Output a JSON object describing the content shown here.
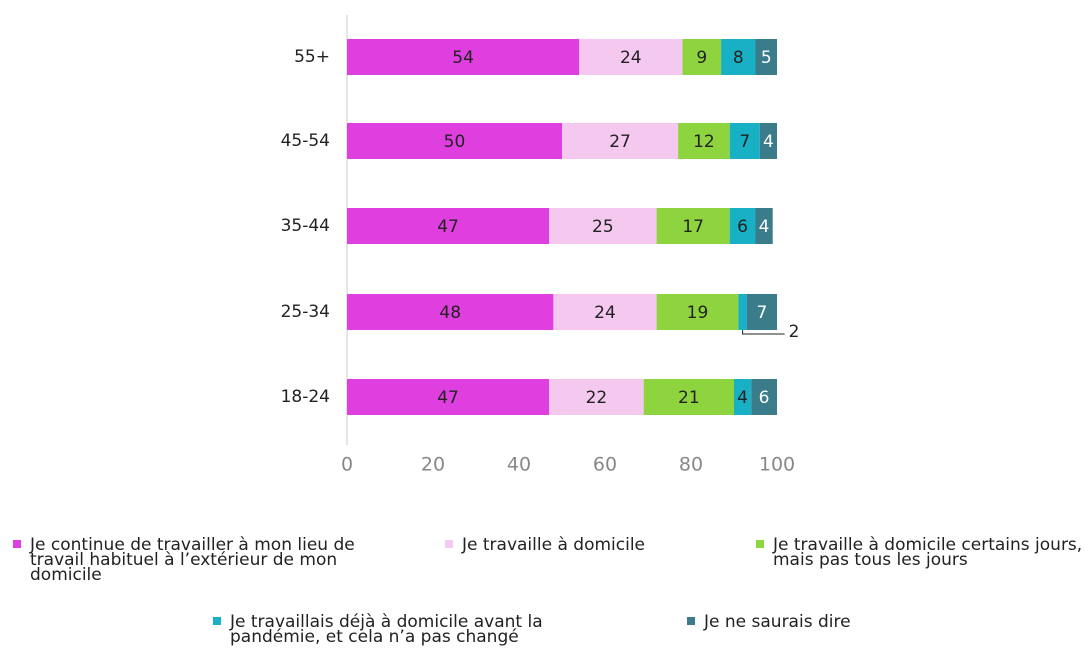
{
  "chart_data": {
    "type": "stacked-bar-horizontal",
    "categories": [
      "55+",
      "45-54",
      "35-44",
      "25-34",
      "18-24"
    ],
    "series": [
      {
        "name": "Je continue de travailler à mon lieu de travail habituel à l’extérieur de mon domicile",
        "color": "#e03fdf",
        "values": [
          54,
          50,
          47,
          48,
          47
        ]
      },
      {
        "name": "Je travaille à domicile",
        "color": "#f5c8f0",
        "values": [
          24,
          27,
          25,
          24,
          22
        ]
      },
      {
        "name": "Je travaille à domicile certains jours, mais pas tous les jours",
        "color": "#8ed43f",
        "values": [
          9,
          12,
          17,
          19,
          21
        ]
      },
      {
        "name": "Je travaillais déjà à domicile avant la pandémie, et cela n’a pas changé",
        "color": "#17b0c4",
        "values": [
          8,
          7,
          6,
          2,
          4
        ]
      },
      {
        "name": "Je ne saurais dire",
        "color": "#3b7c8a",
        "values": [
          5,
          4,
          4,
          7,
          6
        ]
      }
    ],
    "xlim": [
      0,
      100
    ],
    "xticks": [
      0,
      20,
      40,
      60,
      80,
      100
    ],
    "grid": false
  }
}
